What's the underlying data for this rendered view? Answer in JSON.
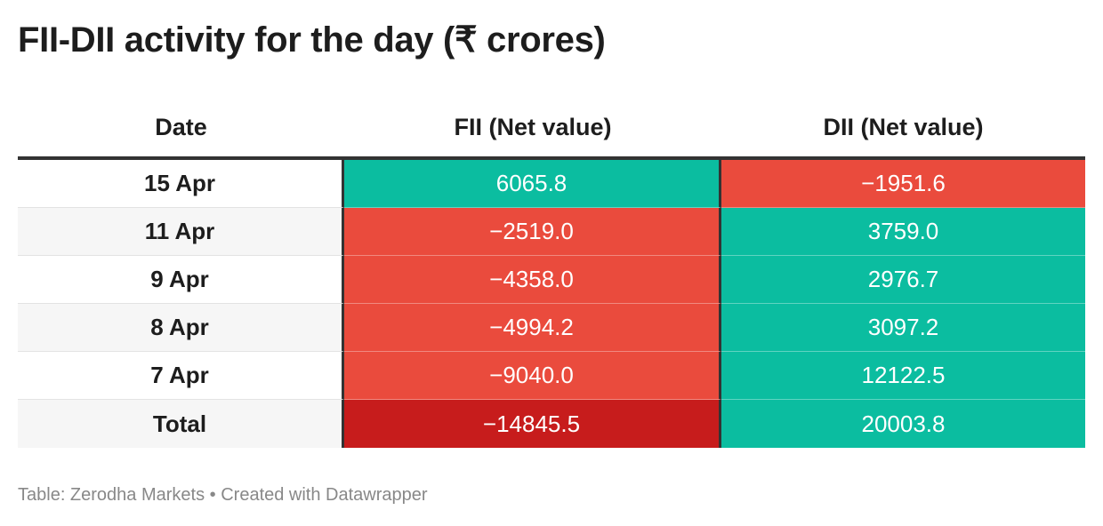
{
  "title": "FII-DII activity for the day (₹ crores)",
  "chart_data": {
    "type": "table",
    "title": "FII-DII activity for the day (₹ crores)",
    "columns": [
      "Date",
      "FII (Net value)",
      "DII (Net value)"
    ],
    "rows": [
      {
        "date": "15 Apr",
        "fii": "6065.8",
        "dii": "−1951.6",
        "fii_value": 6065.8,
        "dii_value": -1951.6
      },
      {
        "date": "11 Apr",
        "fii": "−2519.0",
        "dii": "3759.0",
        "fii_value": -2519.0,
        "dii_value": 3759.0
      },
      {
        "date": "9 Apr",
        "fii": "−4358.0",
        "dii": "2976.7",
        "fii_value": -4358.0,
        "dii_value": 2976.7
      },
      {
        "date": "8 Apr",
        "fii": "−4994.2",
        "dii": "3097.2",
        "fii_value": -4994.2,
        "dii_value": 3097.2
      },
      {
        "date": "7 Apr",
        "fii": "−9040.0",
        "dii": "12122.5",
        "fii_value": -9040.0,
        "dii_value": 12122.5
      },
      {
        "date": "Total",
        "fii": "−14845.5",
        "dii": "20003.8",
        "fii_value": -14845.5,
        "dii_value": 20003.8
      }
    ],
    "colors": {
      "positive": "#0bbda0",
      "negative": "#ea4b3d",
      "strong_negative": "#c71c1c"
    }
  },
  "footer": "Table: Zerodha Markets • Created with Datawrapper"
}
